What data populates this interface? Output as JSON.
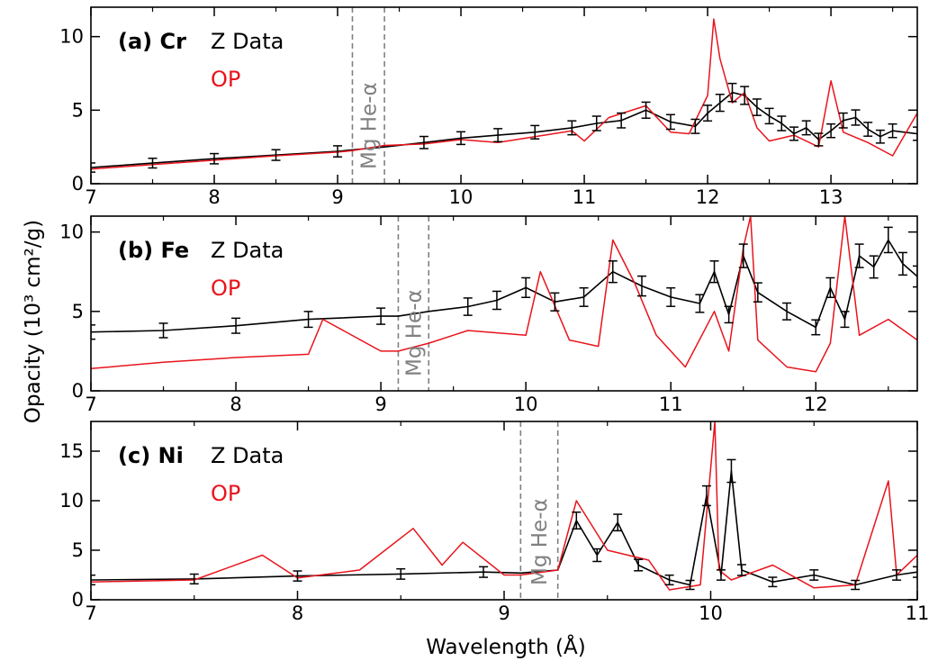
{
  "colors": {
    "z_data": "#000000",
    "op": "#e8141c",
    "mg_band": "#808080"
  },
  "figure": {
    "xlabel": "Wavelength (Å)",
    "ylabel": "Opacity (10³ cm²/g)"
  },
  "chart_data": [
    {
      "type": "line",
      "panel_label": "(a)",
      "element": "Cr",
      "xlim": [
        7,
        13.7
      ],
      "ylim": [
        0,
        12
      ],
      "xticks": [
        7,
        8,
        9,
        10,
        11,
        12,
        13
      ],
      "yticks": [
        0,
        5,
        10
      ],
      "legend": [
        "Z Data",
        "OP"
      ],
      "annotation": {
        "text": "Mg He-α",
        "x_range": [
          9.12,
          9.38
        ]
      },
      "series": [
        {
          "name": "Z Data",
          "x": [
            7.0,
            7.5,
            8.0,
            8.5,
            9.0,
            9.12,
            9.38,
            9.7,
            10.0,
            10.3,
            10.6,
            10.9,
            11.1,
            11.3,
            11.5,
            11.7,
            11.9,
            12.0,
            12.1,
            12.2,
            12.3,
            12.4,
            12.5,
            12.6,
            12.7,
            12.8,
            12.9,
            13.0,
            13.1,
            13.2,
            13.3,
            13.4,
            13.5,
            13.7
          ],
          "y": [
            1.1,
            1.4,
            1.7,
            1.95,
            2.2,
            2.3,
            2.5,
            2.8,
            3.1,
            3.3,
            3.5,
            3.8,
            4.1,
            4.3,
            5.0,
            4.2,
            3.9,
            4.8,
            5.5,
            6.2,
            6.0,
            5.2,
            4.6,
            4.1,
            3.4,
            3.8,
            3.0,
            3.6,
            4.3,
            4.5,
            3.7,
            3.2,
            3.6,
            3.4
          ]
        },
        {
          "name": "OP",
          "x": [
            7.0,
            7.5,
            8.0,
            8.5,
            9.0,
            9.12,
            9.38,
            9.7,
            10.0,
            10.3,
            10.6,
            10.9,
            11.0,
            11.2,
            11.5,
            11.7,
            11.85,
            12.0,
            12.05,
            12.1,
            12.2,
            12.3,
            12.4,
            12.5,
            12.7,
            12.9,
            13.0,
            13.1,
            13.3,
            13.5,
            13.7
          ],
          "y": [
            1.0,
            1.3,
            1.6,
            1.9,
            2.15,
            2.25,
            2.6,
            2.7,
            3.0,
            2.8,
            3.2,
            3.6,
            2.9,
            4.5,
            5.3,
            3.5,
            3.4,
            6.0,
            11.2,
            8.5,
            5.5,
            6.2,
            3.8,
            2.9,
            3.3,
            2.5,
            7.0,
            3.5,
            2.8,
            1.9,
            4.8
          ]
        }
      ]
    },
    {
      "type": "line",
      "panel_label": "(b)",
      "element": "Fe",
      "xlim": [
        7,
        12.7
      ],
      "ylim": [
        0,
        11
      ],
      "xticks": [
        7,
        8,
        9,
        10,
        11,
        12
      ],
      "yticks": [
        0,
        5,
        10
      ],
      "legend": [
        "Z Data",
        "OP"
      ],
      "annotation": {
        "text": "Mg He-α",
        "x_range": [
          9.12,
          9.33
        ]
      },
      "series": [
        {
          "name": "Z Data",
          "x": [
            7.0,
            7.5,
            8.0,
            8.5,
            9.0,
            9.12,
            9.33,
            9.6,
            9.8,
            10.0,
            10.2,
            10.4,
            10.6,
            10.8,
            11.0,
            11.2,
            11.3,
            11.4,
            11.5,
            11.6,
            11.8,
            12.0,
            12.1,
            12.2,
            12.3,
            12.4,
            12.5,
            12.6,
            12.7
          ],
          "y": [
            3.7,
            3.8,
            4.1,
            4.5,
            4.7,
            4.7,
            5.0,
            5.3,
            5.7,
            6.5,
            5.6,
            5.9,
            7.5,
            6.6,
            5.9,
            5.5,
            7.5,
            4.8,
            8.5,
            6.2,
            5.0,
            4.0,
            6.5,
            4.5,
            8.5,
            7.8,
            9.5,
            8.0,
            7.2
          ]
        },
        {
          "name": "OP",
          "x": [
            7.0,
            7.5,
            8.0,
            8.5,
            8.6,
            9.0,
            9.12,
            9.33,
            9.6,
            10.0,
            10.1,
            10.3,
            10.5,
            10.6,
            10.75,
            10.9,
            11.1,
            11.3,
            11.4,
            11.5,
            11.55,
            11.6,
            11.8,
            12.0,
            12.1,
            12.2,
            12.3,
            12.5,
            12.7
          ],
          "y": [
            1.4,
            1.8,
            2.1,
            2.3,
            4.5,
            2.5,
            2.5,
            3.0,
            3.8,
            3.5,
            7.5,
            3.2,
            2.8,
            9.5,
            6.8,
            3.5,
            1.5,
            5.0,
            2.5,
            9.0,
            11.0,
            3.2,
            1.5,
            1.2,
            3.0,
            11.0,
            3.5,
            4.5,
            3.2
          ]
        }
      ]
    },
    {
      "type": "line",
      "panel_label": "(c)",
      "element": "Ni",
      "xlim": [
        7,
        11
      ],
      "ylim": [
        0,
        18
      ],
      "xticks": [
        7,
        8,
        9,
        10,
        11
      ],
      "yticks": [
        0,
        5,
        10,
        15
      ],
      "legend": [
        "Z Data",
        "OP"
      ],
      "annotation": {
        "text": "Mg He-α",
        "x_range": [
          9.08,
          9.26
        ]
      },
      "series": [
        {
          "name": "Z Data",
          "x": [
            7.0,
            7.5,
            8.0,
            8.5,
            8.9,
            9.08,
            9.26,
            9.35,
            9.45,
            9.55,
            9.65,
            9.8,
            9.9,
            9.98,
            10.05,
            10.1,
            10.15,
            10.3,
            10.5,
            10.7,
            10.9,
            11.0
          ],
          "y": [
            2.0,
            2.1,
            2.4,
            2.6,
            2.8,
            2.7,
            3.0,
            8.0,
            4.5,
            7.8,
            3.5,
            2.0,
            1.5,
            10.5,
            2.5,
            13.0,
            3.0,
            1.8,
            2.5,
            1.5,
            2.5,
            2.8
          ]
        },
        {
          "name": "OP",
          "x": [
            7.0,
            7.5,
            7.83,
            8.0,
            8.3,
            8.56,
            8.7,
            8.8,
            9.0,
            9.08,
            9.26,
            9.35,
            9.5,
            9.7,
            9.8,
            9.95,
            10.02,
            10.04,
            10.1,
            10.3,
            10.5,
            10.7,
            10.86,
            10.9,
            11.0
          ],
          "y": [
            1.8,
            2.0,
            4.5,
            2.2,
            3.0,
            7.2,
            3.5,
            5.8,
            2.5,
            2.5,
            3.0,
            10.0,
            5.0,
            4.0,
            1.0,
            1.5,
            18.0,
            3.0,
            2.0,
            3.5,
            1.2,
            1.5,
            12.0,
            2.5,
            4.5
          ]
        }
      ]
    }
  ]
}
